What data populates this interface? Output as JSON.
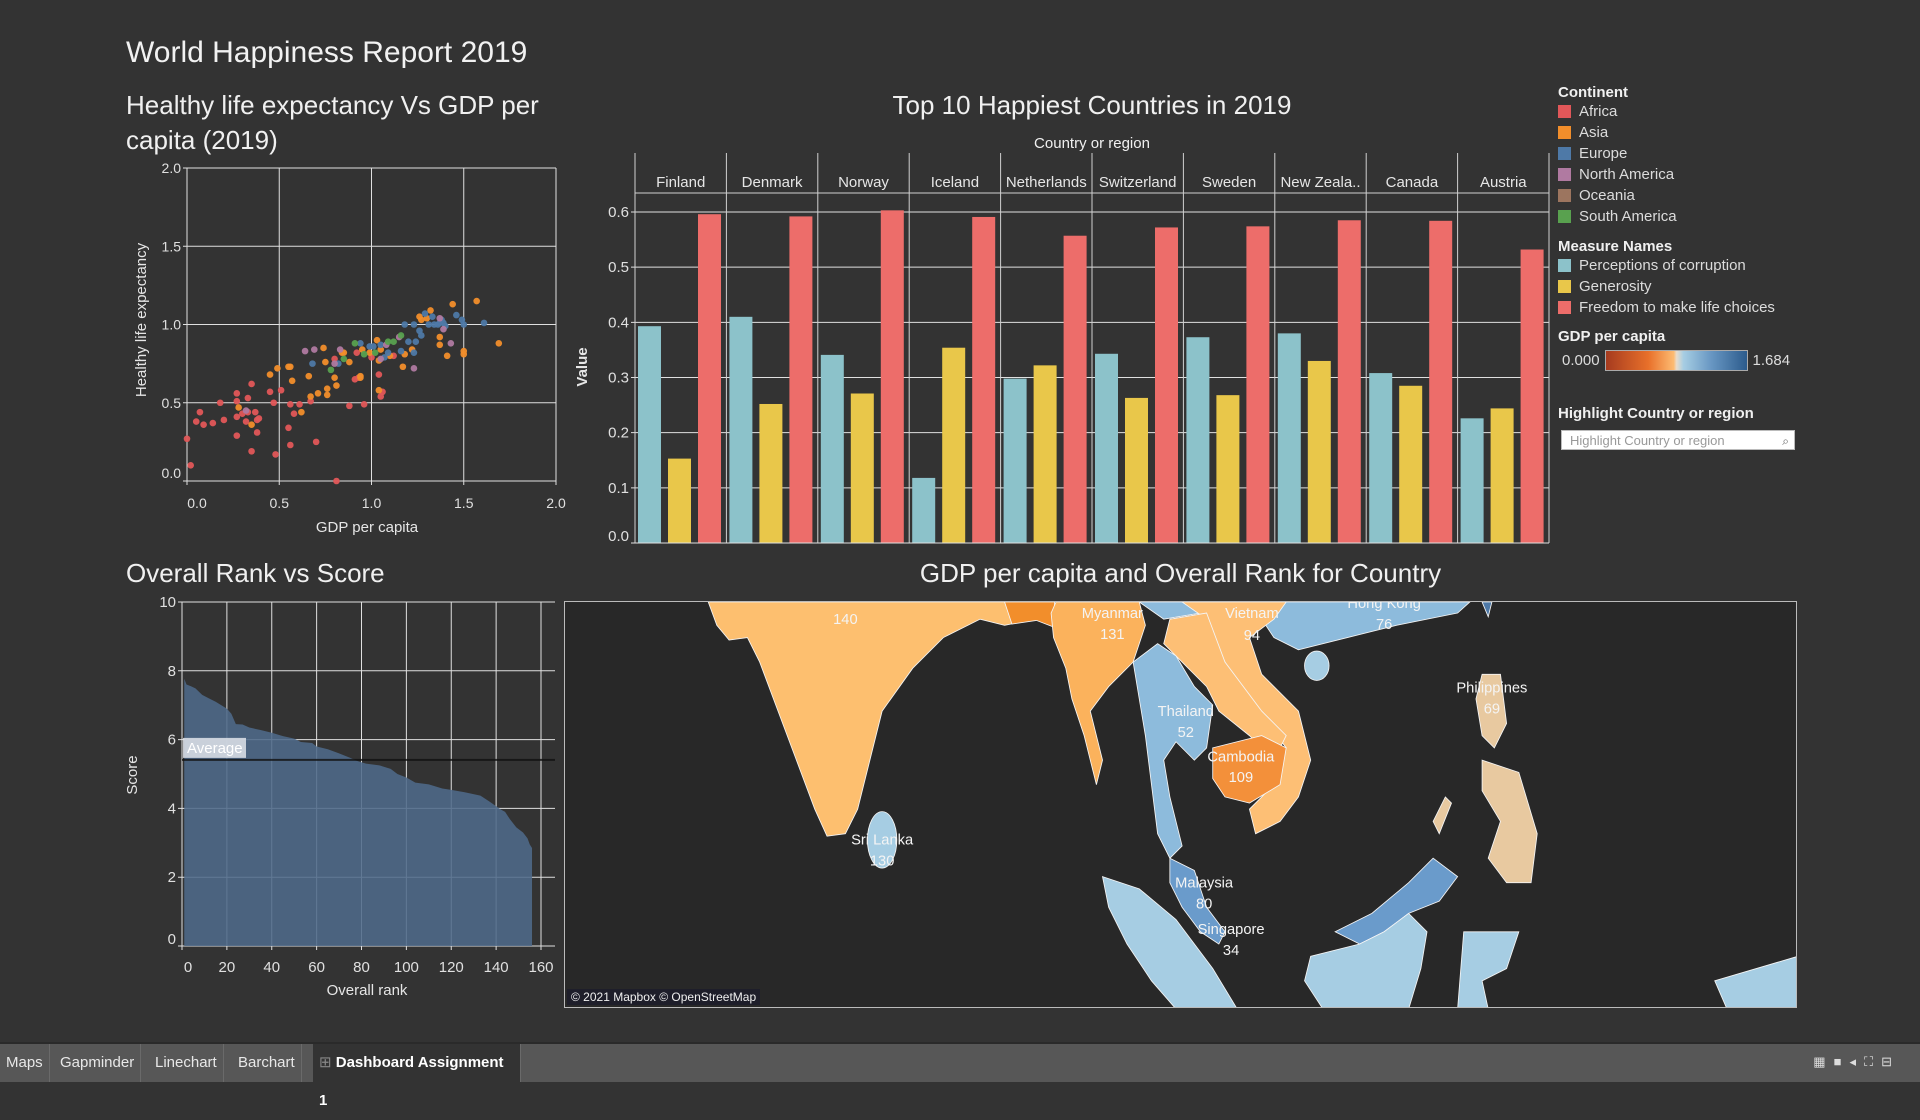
{
  "dashboard": {
    "title": "World Happiness Report 2019"
  },
  "scatter": {
    "title_line1": "Healthy life expectancy Vs GDP per",
    "title_line2": "capita (2019)",
    "chart_data": {
      "type": "scatter",
      "xlabel": "GDP per capita",
      "ylabel": "Healthy life expectancy",
      "xlim": [
        0,
        2.0
      ],
      "ylim": [
        0,
        2.0
      ],
      "xticks": [
        "0.0",
        "0.5",
        "1.0",
        "1.5",
        "2.0"
      ],
      "yticks": [
        "0.0",
        "0.5",
        "1.0",
        "1.5",
        "2.0"
      ],
      "grid": true,
      "series": [
        {
          "name": "Africa",
          "color": "#e15759",
          "points": [
            [
              0.0,
              0.27
            ],
            [
              0.02,
              0.1
            ],
            [
              0.05,
              0.38
            ],
            [
              0.07,
              0.44
            ],
            [
              0.09,
              0.36
            ],
            [
              0.14,
              0.37
            ],
            [
              0.18,
              0.5
            ],
            [
              0.2,
              0.39
            ],
            [
              0.27,
              0.29
            ],
            [
              0.27,
              0.56
            ],
            [
              0.27,
              0.51
            ],
            [
              0.27,
              0.41
            ],
            [
              0.3,
              0.43
            ],
            [
              0.32,
              0.38
            ],
            [
              0.33,
              0.44
            ],
            [
              0.33,
              0.53
            ],
            [
              0.35,
              0.19
            ],
            [
              0.35,
              0.62
            ],
            [
              0.37,
              0.44
            ],
            [
              0.38,
              0.31
            ],
            [
              0.38,
              0.39
            ],
            [
              0.39,
              0.4
            ],
            [
              0.45,
              0.57
            ],
            [
              0.47,
              0.5
            ],
            [
              0.48,
              0.17
            ],
            [
              0.51,
              0.58
            ],
            [
              0.55,
              0.34
            ],
            [
              0.56,
              0.23
            ],
            [
              0.56,
              0.49
            ],
            [
              0.58,
              0.43
            ],
            [
              0.61,
              0.49
            ],
            [
              0.67,
              0.51
            ],
            [
              0.7,
              0.25
            ],
            [
              0.8,
              0.78
            ],
            [
              0.81,
              0.0
            ],
            [
              0.88,
              0.48
            ],
            [
              0.91,
              0.65
            ],
            [
              0.92,
              0.82
            ],
            [
              0.93,
              0.66
            ],
            [
              0.96,
              0.49
            ],
            [
              1.0,
              0.79
            ],
            [
              1.04,
              0.68
            ],
            [
              1.05,
              0.54
            ],
            [
              1.06,
              0.57
            ],
            [
              1.12,
              0.8
            ]
          ]
        },
        {
          "name": "Asia",
          "color": "#f28e2b",
          "points": [
            [
              0.28,
              0.47
            ],
            [
              0.35,
              0.36
            ],
            [
              0.45,
              0.68
            ],
            [
              0.49,
              0.72
            ],
            [
              0.55,
              0.73
            ],
            [
              0.56,
              0.73
            ],
            [
              0.57,
              0.64
            ],
            [
              0.62,
              0.44
            ],
            [
              0.66,
              0.67
            ],
            [
              0.67,
              0.54
            ],
            [
              0.71,
              0.56
            ],
            [
              0.74,
              0.85
            ],
            [
              0.75,
              0.76
            ],
            [
              0.76,
              0.59
            ],
            [
              0.76,
              0.55
            ],
            [
              0.8,
              0.66
            ],
            [
              0.81,
              0.61
            ],
            [
              0.84,
              0.82
            ],
            [
              0.85,
              0.82
            ],
            [
              0.88,
              0.76
            ],
            [
              0.94,
              0.66
            ],
            [
              0.94,
              0.67
            ],
            [
              0.95,
              0.84
            ],
            [
              0.99,
              0.82
            ],
            [
              1.03,
              0.9
            ],
            [
              1.04,
              0.77
            ],
            [
              1.05,
              0.84
            ],
            [
              1.04,
              0.58
            ],
            [
              1.1,
              0.8
            ],
            [
              1.17,
              0.73
            ],
            [
              1.18,
              0.81
            ],
            [
              1.22,
              0.84
            ],
            [
              1.26,
              1.05
            ],
            [
              1.27,
              1.03
            ],
            [
              1.3,
              1.04
            ],
            [
              1.32,
              1.09
            ],
            [
              1.37,
              0.92
            ],
            [
              1.37,
              0.87
            ],
            [
              1.41,
              0.8
            ],
            [
              1.44,
              1.13
            ],
            [
              1.5,
              0.83
            ],
            [
              1.5,
              0.81
            ],
            [
              1.57,
              1.15
            ],
            [
              1.69,
              0.88
            ]
          ]
        },
        {
          "name": "Europe",
          "color": "#4e79a7",
          "points": [
            [
              0.68,
              0.75
            ],
            [
              0.82,
              0.75
            ],
            [
              0.94,
              0.88
            ],
            [
              0.99,
              0.86
            ],
            [
              1.01,
              0.86
            ],
            [
              1.05,
              0.87
            ],
            [
              1.07,
              0.79
            ],
            [
              1.09,
              0.82
            ],
            [
              1.16,
              0.83
            ],
            [
              1.18,
              1.0
            ],
            [
              1.2,
              0.89
            ],
            [
              1.23,
              1.0
            ],
            [
              1.23,
              0.82
            ],
            [
              1.24,
              0.89
            ],
            [
              1.26,
              0.96
            ],
            [
              1.27,
              0.93
            ],
            [
              1.29,
              1.07
            ],
            [
              1.31,
              1.0
            ],
            [
              1.33,
              1.05
            ],
            [
              1.34,
              1.0
            ],
            [
              1.36,
              1.0
            ],
            [
              1.37,
              1.01
            ],
            [
              1.38,
              1.03
            ],
            [
              1.39,
              1.01
            ],
            [
              1.4,
              0.99
            ],
            [
              1.46,
              1.06
            ],
            [
              1.49,
              1.03
            ],
            [
              1.5,
              1.0
            ],
            [
              1.61,
              1.01
            ]
          ]
        },
        {
          "name": "North America",
          "color": "#b07aa1",
          "points": [
            [
              0.32,
              0.45
            ],
            [
              0.64,
              0.83
            ],
            [
              0.69,
              0.84
            ],
            [
              0.8,
              0.75
            ],
            [
              0.83,
              0.84
            ],
            [
              1.05,
              0.78
            ],
            [
              1.08,
              0.87
            ],
            [
              1.15,
              0.92
            ],
            [
              1.23,
              0.72
            ],
            [
              1.37,
              1.04
            ],
            [
              1.39,
              0.97
            ],
            [
              1.43,
              0.88
            ]
          ]
        },
        {
          "name": "South America",
          "color": "#59a14f",
          "points": [
            [
              0.78,
              0.71
            ],
            [
              0.85,
              0.78
            ],
            [
              0.91,
              0.88
            ],
            [
              0.96,
              0.81
            ],
            [
              1.02,
              0.82
            ],
            [
              1.09,
              0.89
            ],
            [
              1.12,
              0.89
            ],
            [
              1.16,
              0.93
            ]
          ]
        }
      ]
    }
  },
  "bars": {
    "title": "Top 10 Happiest Countries in 2019",
    "chart_data": {
      "type": "bar",
      "column_header": "Country or region",
      "ylabel": "Value",
      "ylim": [
        0,
        0.63
      ],
      "yticks": [
        "0.0",
        "0.1",
        "0.2",
        "0.3",
        "0.4",
        "0.5",
        "0.6"
      ],
      "categories": [
        "Finland",
        "Denmark",
        "Norway",
        "Iceland",
        "Netherlands",
        "Switzerland",
        "Sweden",
        "New Zeala..",
        "Canada",
        "Austria"
      ],
      "series": [
        {
          "name": "Perceptions of corruption",
          "color": "#8cc2ca",
          "values": [
            0.393,
            0.41,
            0.341,
            0.118,
            0.298,
            0.343,
            0.373,
            0.38,
            0.308,
            0.226
          ]
        },
        {
          "name": "Generosity",
          "color": "#e9c74a",
          "values": [
            0.153,
            0.252,
            0.271,
            0.354,
            0.322,
            0.263,
            0.268,
            0.33,
            0.285,
            0.244
          ]
        },
        {
          "name": "Freedom to make life choices",
          "color": "#ed6d6a",
          "values": [
            0.596,
            0.592,
            0.603,
            0.591,
            0.557,
            0.572,
            0.574,
            0.585,
            0.584,
            0.532
          ]
        }
      ]
    }
  },
  "legend": {
    "continent_title": "Continent",
    "continents": [
      {
        "label": "Africa",
        "color": "#e15759"
      },
      {
        "label": "Asia",
        "color": "#f28e2b"
      },
      {
        "label": "Europe",
        "color": "#4e79a7"
      },
      {
        "label": "North America",
        "color": "#b07aa1"
      },
      {
        "label": "Oceania",
        "color": "#9c755f"
      },
      {
        "label": "South America",
        "color": "#59a14f"
      }
    ],
    "measures_title": "Measure Names",
    "measures": [
      {
        "label": "Perceptions of corruption",
        "color": "#8cc2ca"
      },
      {
        "label": "Generosity",
        "color": "#e9c74a"
      },
      {
        "label": "Freedom to make life choices",
        "color": "#ed6d6a"
      }
    ],
    "gdp_title": "GDP per capita",
    "gdp_min": "0.000",
    "gdp_max": "1.684",
    "highlight_title": "Highlight Country or region",
    "highlight_placeholder": "Highlight Country or region",
    "search_icon": "search-icon"
  },
  "area": {
    "title": "Overall Rank vs Score",
    "chart_data": {
      "type": "area",
      "xlabel": "Overall rank",
      "ylabel": "Score",
      "xlim": [
        0,
        163
      ],
      "ylim": [
        0,
        10
      ],
      "xticks": [
        "0",
        "20",
        "40",
        "60",
        "80",
        "100",
        "120",
        "140",
        "160"
      ],
      "yticks": [
        "0",
        "2",
        "4",
        "6",
        "8",
        "10"
      ],
      "reference_line": {
        "label": "Average",
        "value": 5.41
      },
      "color": "#4e6a8a",
      "points": [
        [
          1,
          7.77
        ],
        [
          2,
          7.6
        ],
        [
          4,
          7.55
        ],
        [
          6,
          7.49
        ],
        [
          9,
          7.3
        ],
        [
          12,
          7.2
        ],
        [
          15,
          7.1
        ],
        [
          18,
          6.98
        ],
        [
          20,
          6.9
        ],
        [
          22,
          6.75
        ],
        [
          24,
          6.45
        ],
        [
          27,
          6.44
        ],
        [
          30,
          6.35
        ],
        [
          35,
          6.28
        ],
        [
          40,
          6.2
        ],
        [
          45,
          6.1
        ],
        [
          50,
          6.03
        ],
        [
          53,
          5.93
        ],
        [
          58,
          5.9
        ],
        [
          60,
          5.8
        ],
        [
          65,
          5.72
        ],
        [
          70,
          5.6
        ],
        [
          75,
          5.47
        ],
        [
          78,
          5.38
        ],
        [
          82,
          5.3
        ],
        [
          88,
          5.25
        ],
        [
          93,
          5.15
        ],
        [
          96,
          5.0
        ],
        [
          100,
          4.9
        ],
        [
          104,
          4.75
        ],
        [
          110,
          4.7
        ],
        [
          116,
          4.58
        ],
        [
          120,
          4.54
        ],
        [
          126,
          4.47
        ],
        [
          133,
          4.37
        ],
        [
          137,
          4.2
        ],
        [
          142,
          3.97
        ],
        [
          144,
          3.9
        ],
        [
          146,
          3.7
        ],
        [
          149,
          3.45
        ],
        [
          152,
          3.3
        ],
        [
          154,
          3.13
        ],
        [
          155,
          2.95
        ],
        [
          156,
          2.85
        ]
      ]
    }
  },
  "map": {
    "title": "GDP per capita and Overall Rank for Country",
    "attribution": "© 2021 Mapbox © OpenStreetMap",
    "labels": [
      {
        "name": "",
        "rank": "140"
      },
      {
        "name": "Myanmar",
        "rank": "131"
      },
      {
        "name": "Vietnam",
        "rank": "94"
      },
      {
        "name": "Hong Kong",
        "rank": "76"
      },
      {
        "name": "Thailand",
        "rank": "52"
      },
      {
        "name": "Cambodia",
        "rank": "109"
      },
      {
        "name": "Philippines",
        "rank": "69"
      },
      {
        "name": "Sri Lanka",
        "rank": "130"
      },
      {
        "name": "Malaysia",
        "rank": "80"
      },
      {
        "name": "Singapore",
        "rank": "34"
      }
    ]
  },
  "tabs": [
    {
      "label": "Maps"
    },
    {
      "label": "Gapminder"
    },
    {
      "label": "Linechart"
    },
    {
      "label": "Barchart"
    },
    {
      "label": "Dashboard Assignment 1",
      "active": true
    }
  ]
}
